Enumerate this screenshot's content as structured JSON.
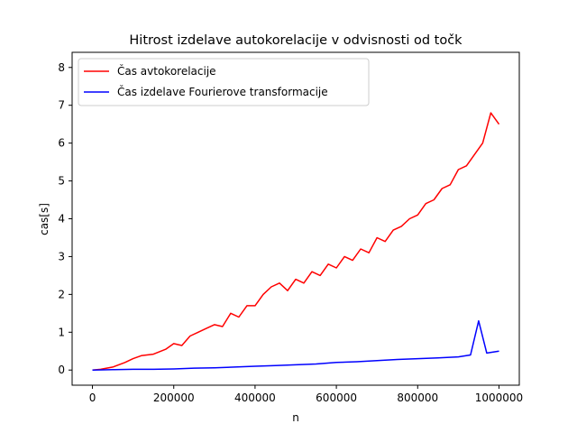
{
  "chart_data": {
    "type": "line",
    "title": "Hitrost izdelave autokorelacije v odvisnosti od točk",
    "xlabel": "n",
    "ylabel": "cas[s]",
    "xlim": [
      -50000,
      1050000
    ],
    "ylim": [
      -0.4,
      8.4
    ],
    "xticks": [
      0,
      200000,
      400000,
      600000,
      800000,
      1000000
    ],
    "yticks": [
      0,
      1,
      2,
      3,
      4,
      5,
      6,
      7,
      8
    ],
    "grid": false,
    "legend_position": "top-left",
    "series": [
      {
        "name": "Čas avtokorelacije",
        "color": "#ff0000",
        "points": [
          [
            0,
            0
          ],
          [
            20000,
            0.02
          ],
          [
            50000,
            0.08
          ],
          [
            80000,
            0.2
          ],
          [
            100000,
            0.3
          ],
          [
            120000,
            0.38
          ],
          [
            150000,
            0.42
          ],
          [
            180000,
            0.55
          ],
          [
            200000,
            0.7
          ],
          [
            220000,
            0.65
          ],
          [
            240000,
            0.9
          ],
          [
            260000,
            1.0
          ],
          [
            280000,
            1.1
          ],
          [
            300000,
            1.2
          ],
          [
            320000,
            1.15
          ],
          [
            340000,
            1.5
          ],
          [
            360000,
            1.4
          ],
          [
            380000,
            1.7
          ],
          [
            400000,
            1.7
          ],
          [
            420000,
            2.0
          ],
          [
            440000,
            2.2
          ],
          [
            460000,
            2.3
          ],
          [
            480000,
            2.1
          ],
          [
            500000,
            2.4
          ],
          [
            520000,
            2.3
          ],
          [
            540000,
            2.6
          ],
          [
            560000,
            2.5
          ],
          [
            580000,
            2.8
          ],
          [
            600000,
            2.7
          ],
          [
            620000,
            3.0
          ],
          [
            640000,
            2.9
          ],
          [
            660000,
            3.2
          ],
          [
            680000,
            3.1
          ],
          [
            700000,
            3.5
          ],
          [
            720000,
            3.4
          ],
          [
            740000,
            3.7
          ],
          [
            760000,
            3.8
          ],
          [
            780000,
            4.0
          ],
          [
            800000,
            4.1
          ],
          [
            820000,
            4.4
          ],
          [
            840000,
            4.5
          ],
          [
            860000,
            4.8
          ],
          [
            880000,
            4.9
          ],
          [
            900000,
            5.3
          ],
          [
            920000,
            5.4
          ],
          [
            940000,
            5.7
          ],
          [
            960000,
            6.0
          ],
          [
            980000,
            6.8
          ],
          [
            1000000,
            6.5
          ]
        ]
      },
      {
        "name": "Čas izdelave Fourierove transformacije",
        "color": "#0000ff",
        "points": [
          [
            0,
            0
          ],
          [
            50000,
            0.01
          ],
          [
            100000,
            0.02
          ],
          [
            150000,
            0.02
          ],
          [
            200000,
            0.03
          ],
          [
            250000,
            0.05
          ],
          [
            300000,
            0.06
          ],
          [
            350000,
            0.08
          ],
          [
            400000,
            0.1
          ],
          [
            450000,
            0.12
          ],
          [
            500000,
            0.14
          ],
          [
            550000,
            0.16
          ],
          [
            600000,
            0.2
          ],
          [
            650000,
            0.22
          ],
          [
            700000,
            0.25
          ],
          [
            750000,
            0.28
          ],
          [
            800000,
            0.3
          ],
          [
            850000,
            0.32
          ],
          [
            900000,
            0.35
          ],
          [
            930000,
            0.4
          ],
          [
            950000,
            1.3
          ],
          [
            970000,
            0.45
          ],
          [
            1000000,
            0.5
          ]
        ]
      }
    ]
  }
}
